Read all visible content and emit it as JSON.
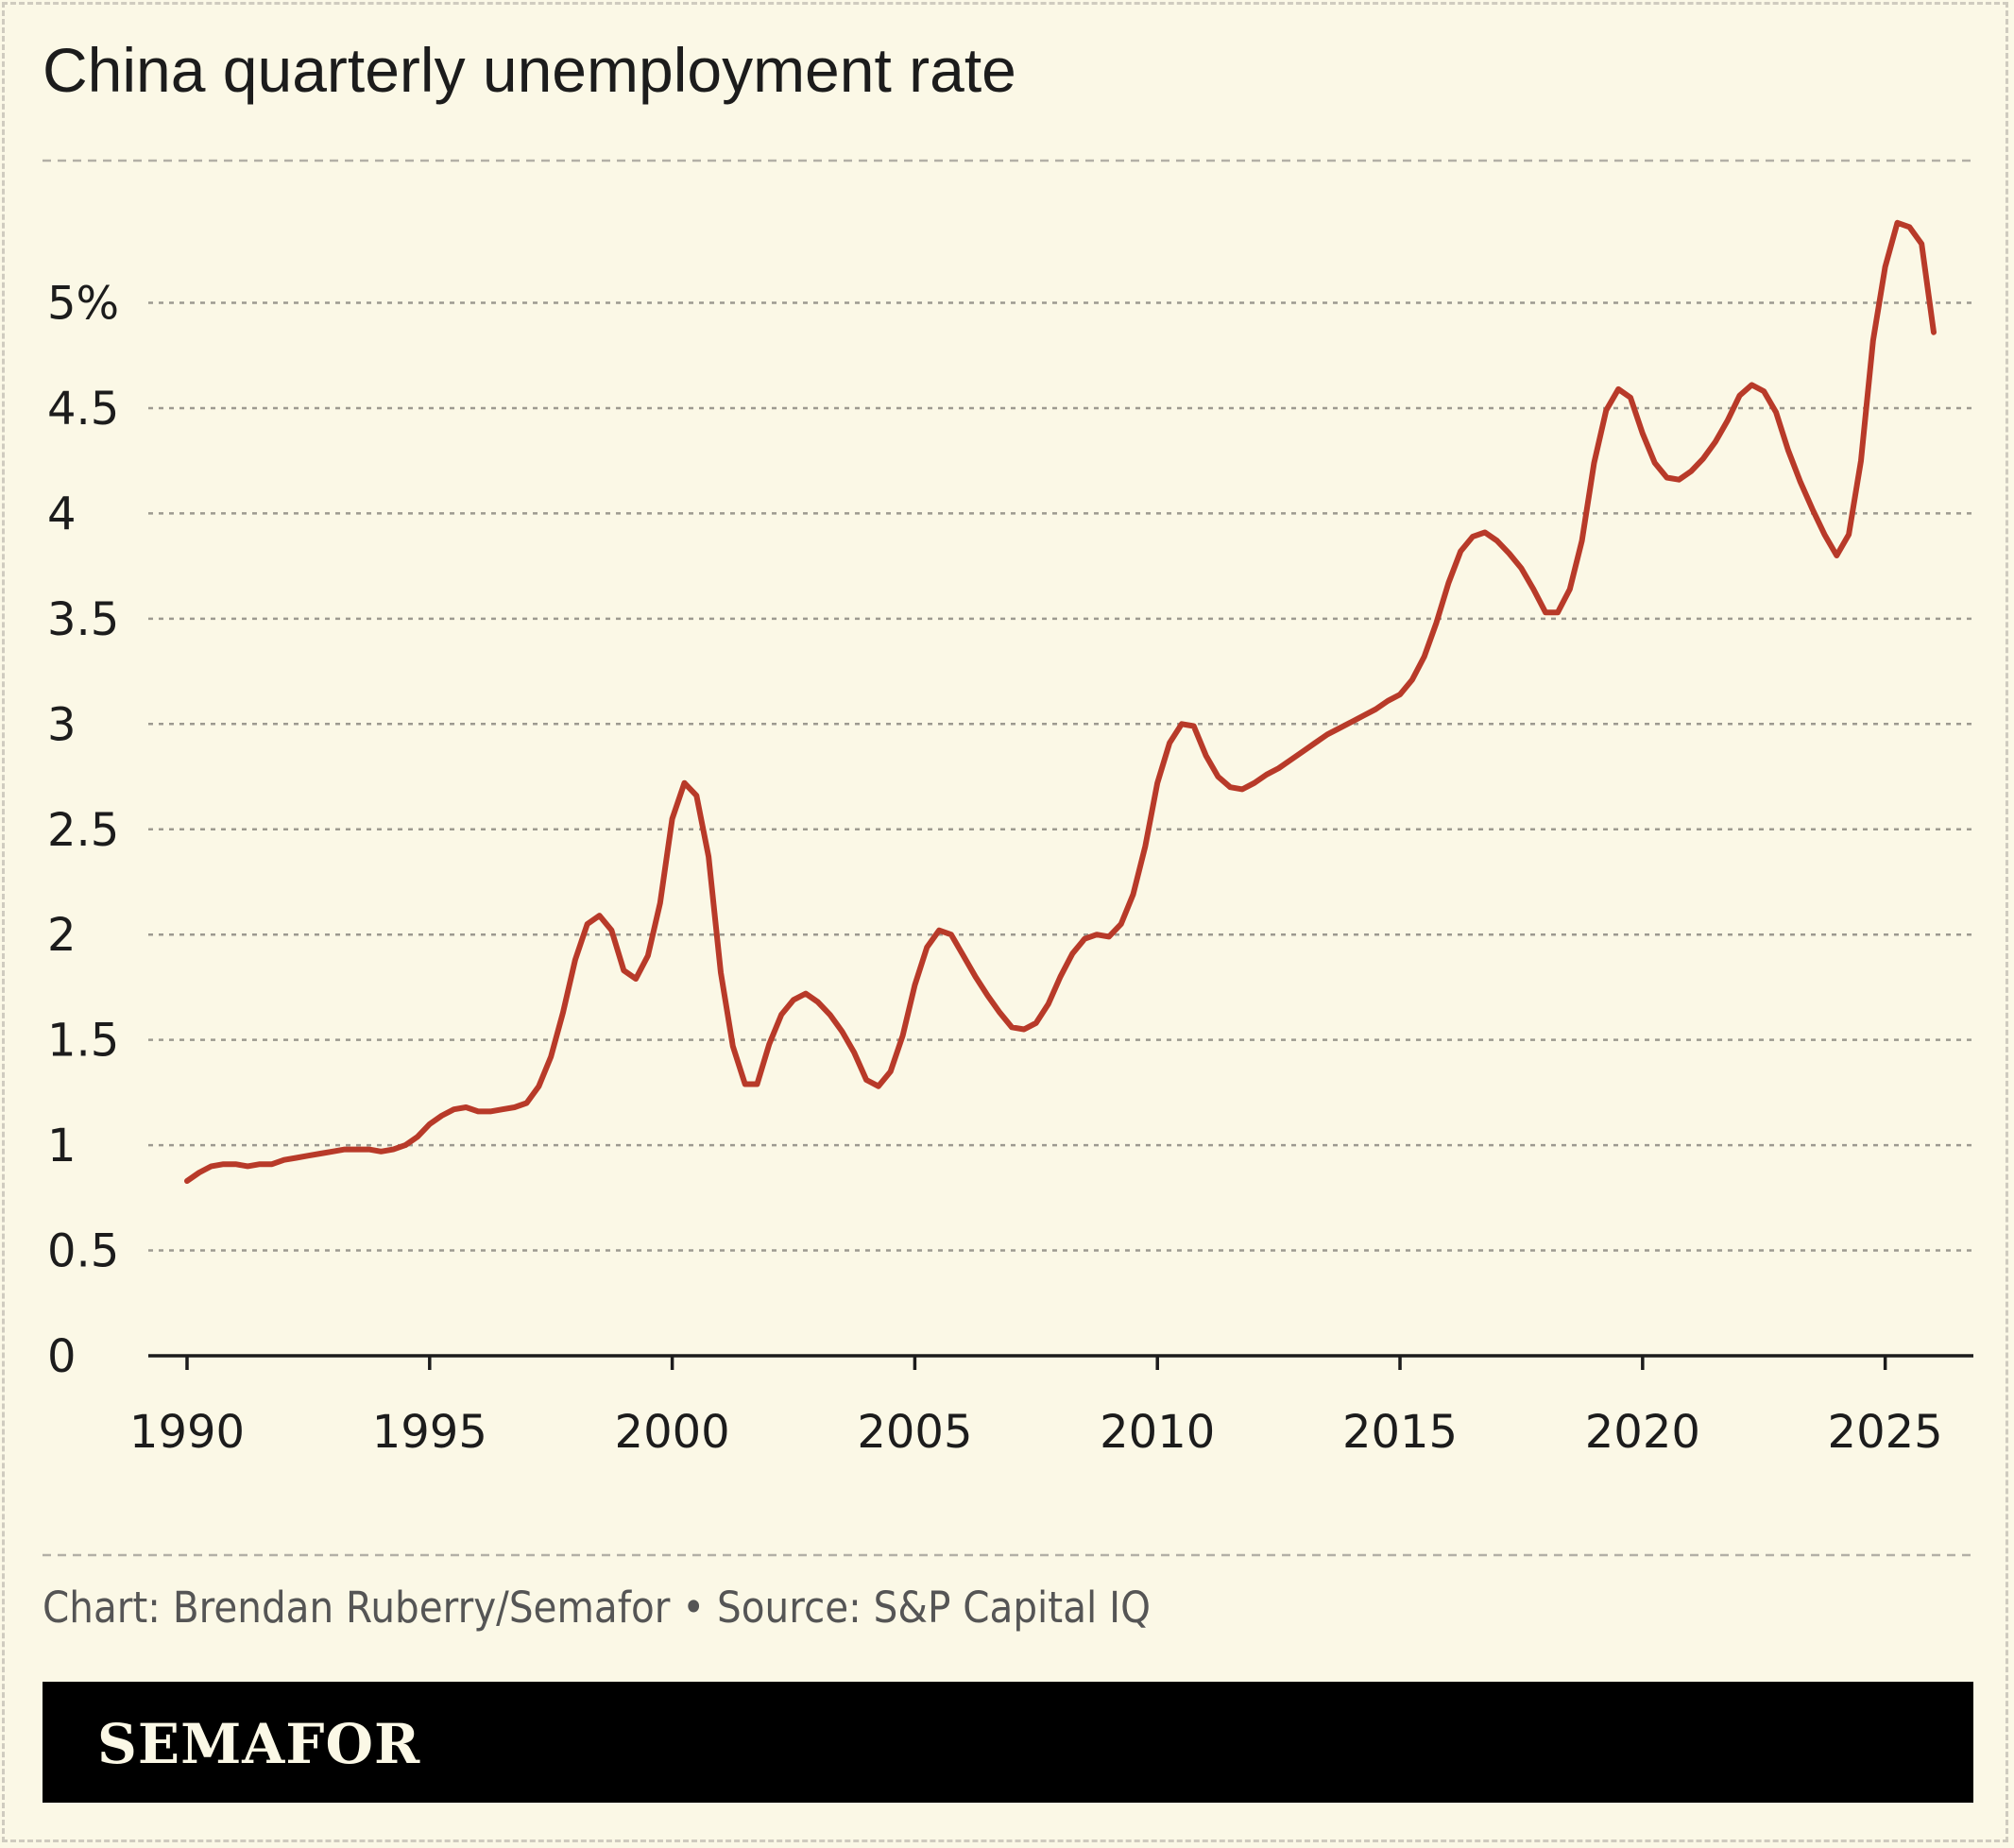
{
  "title": "China quarterly unemployment rate",
  "credit": "Chart: Brendan Ruberry/Semafor • Source: S&P Capital IQ",
  "brand": "SEMAFOR",
  "colors": {
    "background": "#fbf8e6",
    "line": "#b83a29",
    "grid": "#9d9a90",
    "axis": "#1c1c1c",
    "footer": "#000000"
  },
  "chart_data": {
    "type": "line",
    "title": "China quarterly unemployment rate",
    "xlabel": "",
    "ylabel": "",
    "xlim": [
      1990,
      2026
    ],
    "ylim": [
      0,
      5.5
    ],
    "grid": true,
    "y_ticks": [
      {
        "value": 0,
        "label": "0"
      },
      {
        "value": 0.5,
        "label": "0.5"
      },
      {
        "value": 1,
        "label": "1"
      },
      {
        "value": 1.5,
        "label": "1.5"
      },
      {
        "value": 2,
        "label": "2"
      },
      {
        "value": 2.5,
        "label": "2.5"
      },
      {
        "value": 3,
        "label": "3"
      },
      {
        "value": 3.5,
        "label": "3.5"
      },
      {
        "value": 4,
        "label": "4"
      },
      {
        "value": 4.5,
        "label": "4.5"
      },
      {
        "value": 5,
        "label": "5%"
      }
    ],
    "x_ticks": [
      {
        "value": 1990,
        "label": "1990"
      },
      {
        "value": 1995,
        "label": "1995"
      },
      {
        "value": 2000,
        "label": "2000"
      },
      {
        "value": 2005,
        "label": "2005"
      },
      {
        "value": 2010,
        "label": "2010"
      },
      {
        "value": 2015,
        "label": "2015"
      },
      {
        "value": 2020,
        "label": "2020"
      },
      {
        "value": 2025,
        "label": "2025"
      }
    ],
    "series": [
      {
        "points": [
          [
            1990.0,
            0.83
          ],
          [
            1990.25,
            0.87
          ],
          [
            1990.5,
            0.9
          ],
          [
            1990.75,
            0.91
          ],
          [
            1991.0,
            0.91
          ],
          [
            1991.25,
            0.9
          ],
          [
            1991.5,
            0.91
          ],
          [
            1991.75,
            0.91
          ],
          [
            1992.0,
            0.93
          ],
          [
            1992.25,
            0.94
          ],
          [
            1992.5,
            0.95
          ],
          [
            1992.75,
            0.96
          ],
          [
            1993.0,
            0.97
          ],
          [
            1993.25,
            0.98
          ],
          [
            1993.5,
            0.98
          ],
          [
            1993.75,
            0.98
          ],
          [
            1994.0,
            0.97
          ],
          [
            1994.25,
            0.98
          ],
          [
            1994.5,
            1.0
          ],
          [
            1994.75,
            1.04
          ],
          [
            1995.0,
            1.1
          ],
          [
            1995.25,
            1.14
          ],
          [
            1995.5,
            1.17
          ],
          [
            1995.75,
            1.18
          ],
          [
            1996.0,
            1.16
          ],
          [
            1996.25,
            1.16
          ],
          [
            1996.5,
            1.17
          ],
          [
            1996.75,
            1.18
          ],
          [
            1997.0,
            1.2
          ],
          [
            1997.25,
            1.28
          ],
          [
            1997.5,
            1.42
          ],
          [
            1997.75,
            1.63
          ],
          [
            1998.0,
            1.88
          ],
          [
            1998.25,
            2.05
          ],
          [
            1998.5,
            2.09
          ],
          [
            1998.75,
            2.02
          ],
          [
            1999.0,
            1.83
          ],
          [
            1999.25,
            1.79
          ],
          [
            1999.5,
            1.9
          ],
          [
            1999.75,
            2.15
          ],
          [
            2000.0,
            2.55
          ],
          [
            2000.25,
            2.72
          ],
          [
            2000.5,
            2.66
          ],
          [
            2000.75,
            2.37
          ],
          [
            2001.0,
            1.82
          ],
          [
            2001.25,
            1.47
          ],
          [
            2001.5,
            1.29
          ],
          [
            2001.75,
            1.29
          ],
          [
            2002.0,
            1.48
          ],
          [
            2002.25,
            1.62
          ],
          [
            2002.5,
            1.69
          ],
          [
            2002.75,
            1.72
          ],
          [
            2003.0,
            1.68
          ],
          [
            2003.25,
            1.62
          ],
          [
            2003.5,
            1.54
          ],
          [
            2003.75,
            1.44
          ],
          [
            2004.0,
            1.31
          ],
          [
            2004.25,
            1.28
          ],
          [
            2004.5,
            1.35
          ],
          [
            2004.75,
            1.52
          ],
          [
            2005.0,
            1.76
          ],
          [
            2005.25,
            1.94
          ],
          [
            2005.5,
            2.02
          ],
          [
            2005.75,
            2.0
          ],
          [
            2006.0,
            1.9
          ],
          [
            2006.25,
            1.8
          ],
          [
            2006.5,
            1.71
          ],
          [
            2006.75,
            1.63
          ],
          [
            2007.0,
            1.56
          ],
          [
            2007.25,
            1.55
          ],
          [
            2007.5,
            1.58
          ],
          [
            2007.75,
            1.67
          ],
          [
            2008.0,
            1.8
          ],
          [
            2008.25,
            1.91
          ],
          [
            2008.5,
            1.98
          ],
          [
            2008.75,
            2.0
          ],
          [
            2009.0,
            1.99
          ],
          [
            2009.25,
            2.05
          ],
          [
            2009.5,
            2.19
          ],
          [
            2009.75,
            2.42
          ],
          [
            2010.0,
            2.72
          ],
          [
            2010.25,
            2.91
          ],
          [
            2010.5,
            3.0
          ],
          [
            2010.75,
            2.99
          ],
          [
            2011.0,
            2.85
          ],
          [
            2011.25,
            2.75
          ],
          [
            2011.5,
            2.7
          ],
          [
            2011.75,
            2.69
          ],
          [
            2012.0,
            2.72
          ],
          [
            2012.25,
            2.76
          ],
          [
            2012.5,
            2.79
          ],
          [
            2012.75,
            2.83
          ],
          [
            2013.0,
            2.87
          ],
          [
            2013.25,
            2.91
          ],
          [
            2013.5,
            2.95
          ],
          [
            2013.75,
            2.98
          ],
          [
            2014.0,
            3.01
          ],
          [
            2014.25,
            3.04
          ],
          [
            2014.5,
            3.07
          ],
          [
            2014.75,
            3.11
          ],
          [
            2015.0,
            3.14
          ],
          [
            2015.25,
            3.21
          ],
          [
            2015.5,
            3.32
          ],
          [
            2015.75,
            3.48
          ],
          [
            2016.0,
            3.67
          ],
          [
            2016.25,
            3.82
          ],
          [
            2016.5,
            3.89
          ],
          [
            2016.75,
            3.91
          ],
          [
            2017.0,
            3.87
          ],
          [
            2017.25,
            3.81
          ],
          [
            2017.5,
            3.74
          ],
          [
            2017.75,
            3.64
          ],
          [
            2018.0,
            3.53
          ],
          [
            2018.25,
            3.53
          ],
          [
            2018.5,
            3.64
          ],
          [
            2018.75,
            3.87
          ],
          [
            2019.0,
            4.24
          ],
          [
            2019.25,
            4.49
          ],
          [
            2019.5,
            4.59
          ],
          [
            2019.75,
            4.55
          ],
          [
            2020.0,
            4.38
          ],
          [
            2020.25,
            4.24
          ],
          [
            2020.5,
            4.17
          ],
          [
            2020.75,
            4.16
          ],
          [
            2021.0,
            4.2
          ],
          [
            2021.25,
            4.26
          ],
          [
            2021.5,
            4.34
          ],
          [
            2021.75,
            4.44
          ],
          [
            2022.0,
            4.56
          ],
          [
            2022.25,
            4.61
          ],
          [
            2022.5,
            4.58
          ],
          [
            2022.75,
            4.48
          ],
          [
            2023.0,
            4.3
          ],
          [
            2023.25,
            4.15
          ],
          [
            2023.5,
            4.02
          ],
          [
            2023.75,
            3.9
          ],
          [
            2024.0,
            3.8
          ],
          [
            2024.25,
            3.9
          ],
          [
            2024.5,
            4.25
          ],
          [
            2024.75,
            4.82
          ],
          [
            2025.0,
            5.17
          ],
          [
            2025.25,
            5.38
          ],
          [
            2025.5,
            5.36
          ],
          [
            2025.75,
            5.28
          ],
          [
            2026.0,
            4.86
          ]
        ]
      }
    ]
  }
}
